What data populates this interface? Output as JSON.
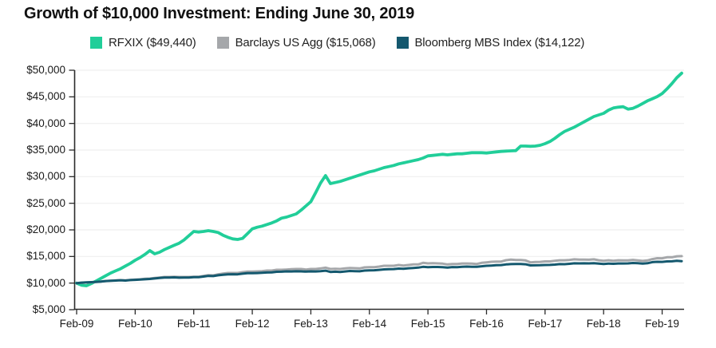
{
  "title": "Growth of $10,000 Investment: Ending June 30, 2019",
  "legend": {
    "items": [
      {
        "label": "RFXIX ($49,440)",
        "color": "#21ce99"
      },
      {
        "label": "Barclays US Agg ($15,068)",
        "color": "#a5a7aa"
      },
      {
        "label": "Bloomberg MBS Index ($14,122)",
        "color": "#14586e"
      }
    ]
  },
  "chart_data": {
    "type": "line",
    "title": "Growth of $10,000 Investment: Ending June 30, 2019",
    "x_unit": "monthly from Feb-09 to Jun-19",
    "ylim": [
      5000,
      50000
    ],
    "y_tick_step": 5000,
    "grid": "horizontal-only",
    "legend_position": "top",
    "colors": {
      "axis": "#2b2b2b",
      "grid": "#efefef",
      "tick_text": "#1a1a1a"
    },
    "y_ticks": [
      {
        "value": 5000,
        "label": "$5,000"
      },
      {
        "value": 10000,
        "label": "$10,000"
      },
      {
        "value": 15000,
        "label": "$15,000"
      },
      {
        "value": 20000,
        "label": "$20,000"
      },
      {
        "value": 25000,
        "label": "$25,000"
      },
      {
        "value": 30000,
        "label": "$30,000"
      },
      {
        "value": 35000,
        "label": "$35,000"
      },
      {
        "value": 40000,
        "label": "$40,000"
      },
      {
        "value": 45000,
        "label": "$45,000"
      },
      {
        "value": 50000,
        "label": "$50,000"
      }
    ],
    "x_ticks": [
      {
        "month_index": 0,
        "label": "Feb-09"
      },
      {
        "month_index": 12,
        "label": "Feb-10"
      },
      {
        "month_index": 24,
        "label": "Feb-11"
      },
      {
        "month_index": 36,
        "label": "Feb-12"
      },
      {
        "month_index": 48,
        "label": "Feb-13"
      },
      {
        "month_index": 60,
        "label": "Feb-14"
      },
      {
        "month_index": 72,
        "label": "Feb-15"
      },
      {
        "month_index": 84,
        "label": "Feb-16"
      },
      {
        "month_index": 96,
        "label": "Feb-17"
      },
      {
        "month_index": 108,
        "label": "Feb-18"
      },
      {
        "month_index": 120,
        "label": "Feb-19"
      }
    ],
    "series": [
      {
        "name": "RFXIX",
        "final_value": 49440,
        "color": "#21ce99",
        "values": [
          10000,
          9600,
          9500,
          9900,
          10400,
          10900,
          11400,
          11900,
          12300,
          12700,
          13200,
          13700,
          14300,
          14800,
          15400,
          16100,
          15500,
          15800,
          16300,
          16700,
          17100,
          17500,
          18100,
          18900,
          19700,
          19600,
          19700,
          19850,
          19700,
          19500,
          19000,
          18600,
          18300,
          18200,
          18400,
          19300,
          20200,
          20500,
          20700,
          21000,
          21300,
          21700,
          22200,
          22400,
          22700,
          23000,
          23700,
          24500,
          25300,
          27000,
          28800,
          30200,
          28700,
          28900,
          29100,
          29400,
          29700,
          30000,
          30300,
          30600,
          30900,
          31100,
          31400,
          31700,
          31900,
          32100,
          32400,
          32600,
          32800,
          33000,
          33200,
          33500,
          33900,
          34000,
          34100,
          34200,
          34100,
          34200,
          34300,
          34300,
          34400,
          34500,
          34500,
          34500,
          34450,
          34550,
          34650,
          34750,
          34800,
          34850,
          34900,
          35750,
          35750,
          35700,
          35750,
          35900,
          36200,
          36600,
          37200,
          37900,
          38500,
          38900,
          39300,
          39800,
          40300,
          40800,
          41300,
          41600,
          41900,
          42500,
          42900,
          43050,
          43150,
          42700,
          42850,
          43250,
          43750,
          44250,
          44650,
          45050,
          45600,
          46500,
          47500,
          48600,
          49440
        ]
      },
      {
        "name": "Barclays US Agg",
        "final_value": 15068,
        "color": "#a5a7aa",
        "values": [
          10000,
          10050,
          10100,
          10150,
          10220,
          10300,
          10400,
          10450,
          10500,
          10550,
          10500,
          10600,
          10650,
          10700,
          10800,
          10850,
          10950,
          11050,
          11150,
          11150,
          11200,
          11150,
          11150,
          11150,
          11200,
          11200,
          11350,
          11500,
          11450,
          11650,
          11800,
          11900,
          11900,
          11900,
          12050,
          12150,
          12150,
          12200,
          12250,
          12350,
          12350,
          12500,
          12500,
          12550,
          12600,
          12650,
          12650,
          12550,
          12650,
          12650,
          12750,
          12900,
          12650,
          12700,
          12650,
          12750,
          12850,
          12800,
          12750,
          12950,
          13000,
          13000,
          13100,
          13250,
          13250,
          13250,
          13400,
          13300,
          13400,
          13500,
          13500,
          13800,
          13700,
          13750,
          13700,
          13650,
          13500,
          13600,
          13580,
          13680,
          13680,
          13650,
          13600,
          13800,
          13900,
          14000,
          14050,
          14050,
          14300,
          14400,
          14350,
          14350,
          14250,
          13900,
          13950,
          13980,
          14080,
          14070,
          14180,
          14290,
          14280,
          14340,
          14470,
          14400,
          14410,
          14390,
          14460,
          14290,
          14200,
          14290,
          14180,
          14290,
          14270,
          14270,
          14360,
          14270,
          14160,
          14250,
          14510,
          14670,
          14660,
          14850,
          14860,
          15040,
          15068
        ]
      },
      {
        "name": "Bloomberg MBS Index",
        "final_value": 14122,
        "color": "#14586e",
        "values": [
          10000,
          10080,
          10130,
          10180,
          10230,
          10300,
          10380,
          10430,
          10480,
          10530,
          10480,
          10560,
          10610,
          10650,
          10720,
          10780,
          10870,
          10960,
          11030,
          11040,
          11080,
          11020,
          11030,
          11050,
          11100,
          11110,
          11230,
          11350,
          11320,
          11470,
          11570,
          11650,
          11660,
          11640,
          11760,
          11850,
          11860,
          11880,
          11930,
          11990,
          12020,
          12130,
          12140,
          12200,
          12190,
          12210,
          12200,
          12150,
          12200,
          12190,
          12250,
          12340,
          12090,
          12140,
          12100,
          12180,
          12270,
          12240,
          12210,
          12350,
          12400,
          12410,
          12480,
          12580,
          12610,
          12630,
          12720,
          12700,
          12780,
          12840,
          12900,
          13050,
          13000,
          13020,
          13030,
          13000,
          12920,
          13010,
          13000,
          13060,
          13100,
          13070,
          13050,
          13160,
          13250,
          13300,
          13350,
          13380,
          13500,
          13560,
          13580,
          13600,
          13530,
          13330,
          13340,
          13360,
          13400,
          13410,
          13480,
          13560,
          13550,
          13620,
          13720,
          13700,
          13710,
          13700,
          13740,
          13670,
          13600,
          13670,
          13620,
          13680,
          13690,
          13700,
          13780,
          13730,
          13660,
          13730,
          13940,
          14000,
          13990,
          14080,
          14090,
          14180,
          14122
        ]
      }
    ]
  }
}
